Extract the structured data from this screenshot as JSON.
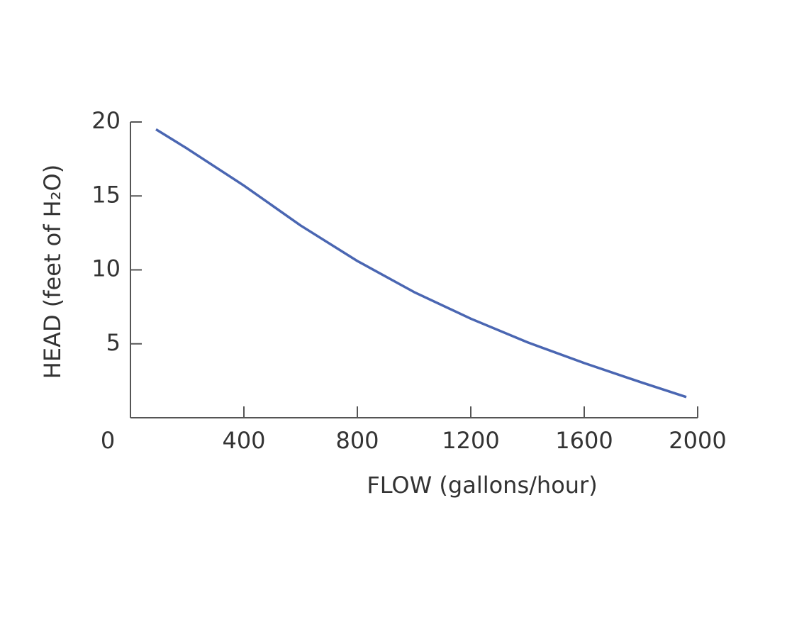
{
  "chart_data": {
    "type": "line",
    "x_label": "FLOW (gallons/hour)",
    "y_label": "HEAD (feet of H₂O)",
    "x": [
      90,
      200,
      400,
      600,
      800,
      1000,
      1200,
      1400,
      1600,
      1800,
      1960
    ],
    "series": [
      {
        "color": "#4a66b2",
        "values": [
          19.5,
          18.2,
          15.7,
          13,
          10.6,
          8.5,
          6.7,
          5.1,
          3.7,
          2.4,
          1.4
        ]
      }
    ],
    "xlim": [
      0,
      2000
    ],
    "ylim": [
      0,
      20
    ],
    "xticks": [
      0,
      400,
      800,
      1200,
      1600,
      2000
    ],
    "yticks": [
      5,
      10,
      15,
      20
    ]
  }
}
